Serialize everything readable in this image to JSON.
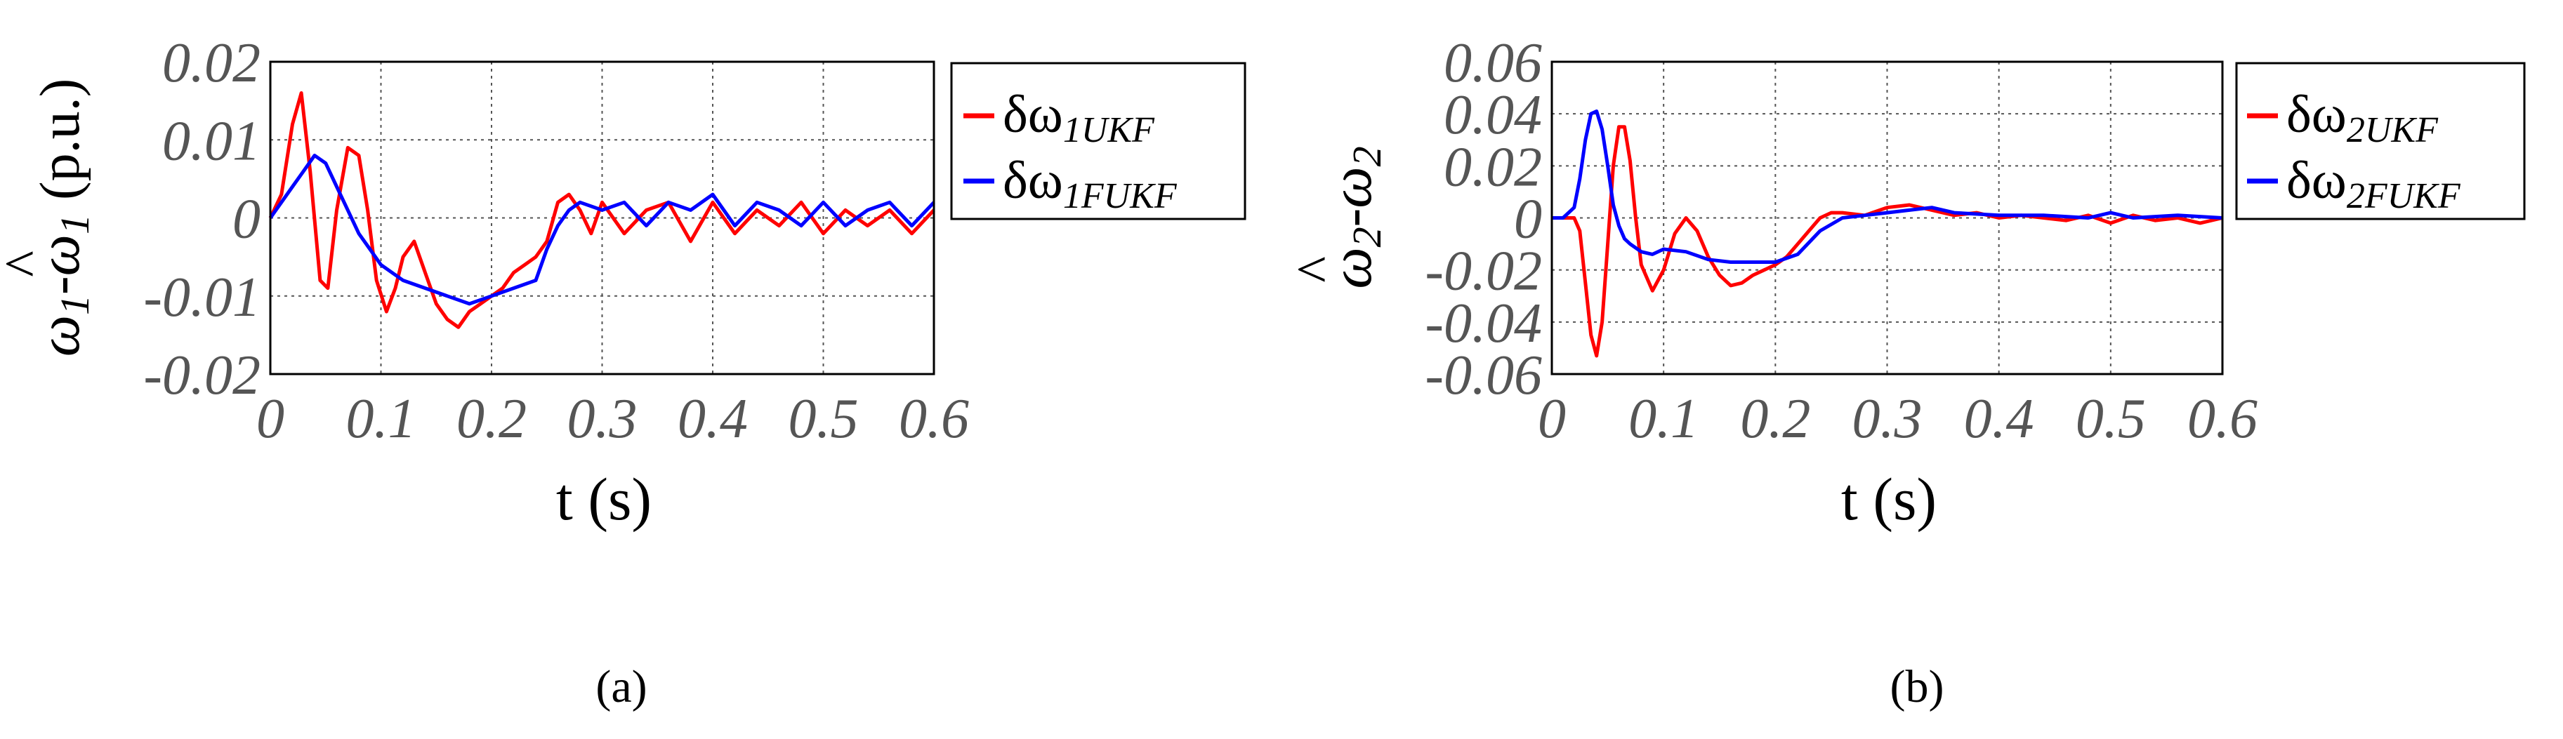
{
  "charts": [
    {
      "id": "a",
      "caption": "(a)",
      "ylabel_main": "ω",
      "ylabel_sub": "1",
      "ylabel_hat": "^",
      "ylabel_unit": " (p.u.)",
      "xlabel": "t (s)",
      "legend": [
        {
          "symbol": "δω",
          "sub": "1UKF"
        },
        {
          "symbol": "δω",
          "sub": "1FUKF"
        }
      ]
    },
    {
      "id": "b",
      "caption": "(b)",
      "ylabel_main": "ω",
      "ylabel_sub": "2",
      "ylabel_hat": "^",
      "ylabel_unit": "",
      "xlabel": "t (s)",
      "legend": [
        {
          "symbol": "δω",
          "sub": "2UKF"
        },
        {
          "symbol": "δω",
          "sub": "2FUKF"
        }
      ]
    }
  ],
  "chart_data": [
    {
      "type": "line",
      "xlabel": "t (s)",
      "ylabel": "ω1-ω̂1 (p.u.)",
      "xlim": [
        0,
        0.6
      ],
      "ylim": [
        -0.02,
        0.02
      ],
      "xticks": [
        "0",
        "0.1",
        "0.2",
        "0.3",
        "0.4",
        "0.5",
        "0.6"
      ],
      "yticks": [
        "0.02",
        "0.01",
        "0",
        "-0.01",
        "-0.02"
      ],
      "grid": true,
      "legend_position": "outside-right",
      "series": [
        {
          "name": "δω1UKF",
          "color": "#ff0000",
          "x": [
            0,
            0.01,
            0.02,
            0.028,
            0.036,
            0.045,
            0.052,
            0.06,
            0.07,
            0.08,
            0.088,
            0.096,
            0.105,
            0.113,
            0.12,
            0.13,
            0.14,
            0.15,
            0.16,
            0.17,
            0.18,
            0.19,
            0.2,
            0.21,
            0.22,
            0.23,
            0.24,
            0.25,
            0.26,
            0.27,
            0.28,
            0.29,
            0.3,
            0.32,
            0.34,
            0.36,
            0.38,
            0.4,
            0.42,
            0.44,
            0.46,
            0.48,
            0.5,
            0.52,
            0.54,
            0.56,
            0.58,
            0.6
          ],
          "y": [
            0,
            0.003,
            0.012,
            0.016,
            0.006,
            -0.008,
            -0.009,
            0.001,
            0.009,
            0.008,
            0.001,
            -0.008,
            -0.012,
            -0.009,
            -0.005,
            -0.003,
            -0.007,
            -0.011,
            -0.013,
            -0.014,
            -0.012,
            -0.011,
            -0.01,
            -0.009,
            -0.007,
            -0.006,
            -0.005,
            -0.003,
            0.002,
            0.003,
            0.001,
            -0.002,
            0.002,
            -0.002,
            0.001,
            0.002,
            -0.003,
            0.002,
            -0.002,
            0.001,
            -0.001,
            0.002,
            -0.002,
            0.001,
            -0.001,
            0.001,
            -0.002,
            0.001
          ]
        },
        {
          "name": "δω1FUKF",
          "color": "#0000ff",
          "x": [
            0,
            0.01,
            0.02,
            0.03,
            0.04,
            0.05,
            0.06,
            0.07,
            0.08,
            0.09,
            0.1,
            0.12,
            0.14,
            0.16,
            0.18,
            0.2,
            0.22,
            0.24,
            0.25,
            0.26,
            0.27,
            0.28,
            0.3,
            0.32,
            0.34,
            0.36,
            0.38,
            0.4,
            0.42,
            0.44,
            0.46,
            0.48,
            0.5,
            0.52,
            0.54,
            0.56,
            0.58,
            0.6
          ],
          "y": [
            0,
            0.002,
            0.004,
            0.006,
            0.008,
            0.007,
            0.004,
            0.001,
            -0.002,
            -0.004,
            -0.006,
            -0.008,
            -0.009,
            -0.01,
            -0.011,
            -0.01,
            -0.009,
            -0.008,
            -0.004,
            -0.001,
            0.001,
            0.002,
            0.001,
            0.002,
            -0.001,
            0.002,
            0.001,
            0.003,
            -0.001,
            0.002,
            0.001,
            -0.001,
            0.002,
            -0.001,
            0.001,
            0.002,
            -0.001,
            0.002
          ]
        }
      ]
    },
    {
      "type": "line",
      "xlabel": "t (s)",
      "ylabel": "ω2-ω̂2",
      "xlim": [
        0,
        0.6
      ],
      "ylim": [
        -0.06,
        0.06
      ],
      "xticks": [
        "0",
        "0.1",
        "0.2",
        "0.3",
        "0.4",
        "0.5",
        "0.6"
      ],
      "yticks": [
        "0.06",
        "0.04",
        "0.02",
        "0",
        "-0.02",
        "-0.04",
        "-0.06"
      ],
      "grid": true,
      "legend_position": "outside-right",
      "series": [
        {
          "name": "δω2UKF",
          "color": "#ff0000",
          "x": [
            0,
            0.01,
            0.02,
            0.025,
            0.03,
            0.035,
            0.04,
            0.045,
            0.05,
            0.055,
            0.06,
            0.065,
            0.07,
            0.075,
            0.08,
            0.09,
            0.1,
            0.11,
            0.12,
            0.13,
            0.14,
            0.15,
            0.16,
            0.17,
            0.18,
            0.19,
            0.2,
            0.21,
            0.22,
            0.23,
            0.24,
            0.25,
            0.26,
            0.28,
            0.3,
            0.32,
            0.34,
            0.36,
            0.38,
            0.4,
            0.42,
            0.44,
            0.46,
            0.48,
            0.5,
            0.52,
            0.54,
            0.56,
            0.58,
            0.6
          ],
          "y": [
            0,
            0,
            0,
            -0.005,
            -0.025,
            -0.045,
            -0.053,
            -0.04,
            -0.01,
            0.02,
            0.035,
            0.035,
            0.022,
            0.0,
            -0.018,
            -0.028,
            -0.02,
            -0.006,
            0.0,
            -0.005,
            -0.015,
            -0.022,
            -0.026,
            -0.025,
            -0.022,
            -0.02,
            -0.018,
            -0.015,
            -0.01,
            -0.005,
            0.0,
            0.002,
            0.002,
            0.001,
            0.004,
            0.005,
            0.003,
            0.001,
            0.002,
            0.0,
            0.001,
            0.0,
            -0.001,
            0.001,
            -0.002,
            0.001,
            -0.001,
            0.0,
            -0.002,
            0.0
          ]
        },
        {
          "name": "δω2FUKF",
          "color": "#0000ff",
          "x": [
            0,
            0.01,
            0.02,
            0.025,
            0.03,
            0.035,
            0.04,
            0.045,
            0.05,
            0.055,
            0.06,
            0.065,
            0.07,
            0.08,
            0.09,
            0.1,
            0.12,
            0.14,
            0.16,
            0.18,
            0.2,
            0.22,
            0.24,
            0.26,
            0.28,
            0.3,
            0.32,
            0.34,
            0.36,
            0.4,
            0.44,
            0.48,
            0.5,
            0.52,
            0.56,
            0.6
          ],
          "y": [
            0,
            0,
            0.004,
            0.015,
            0.03,
            0.04,
            0.041,
            0.034,
            0.02,
            0.005,
            -0.003,
            -0.008,
            -0.01,
            -0.013,
            -0.014,
            -0.012,
            -0.013,
            -0.016,
            -0.017,
            -0.017,
            -0.017,
            -0.014,
            -0.005,
            0.0,
            0.001,
            0.002,
            0.003,
            0.004,
            0.002,
            0.001,
            0.001,
            0.0,
            0.002,
            0.0,
            0.001,
            0.0
          ]
        }
      ]
    }
  ]
}
